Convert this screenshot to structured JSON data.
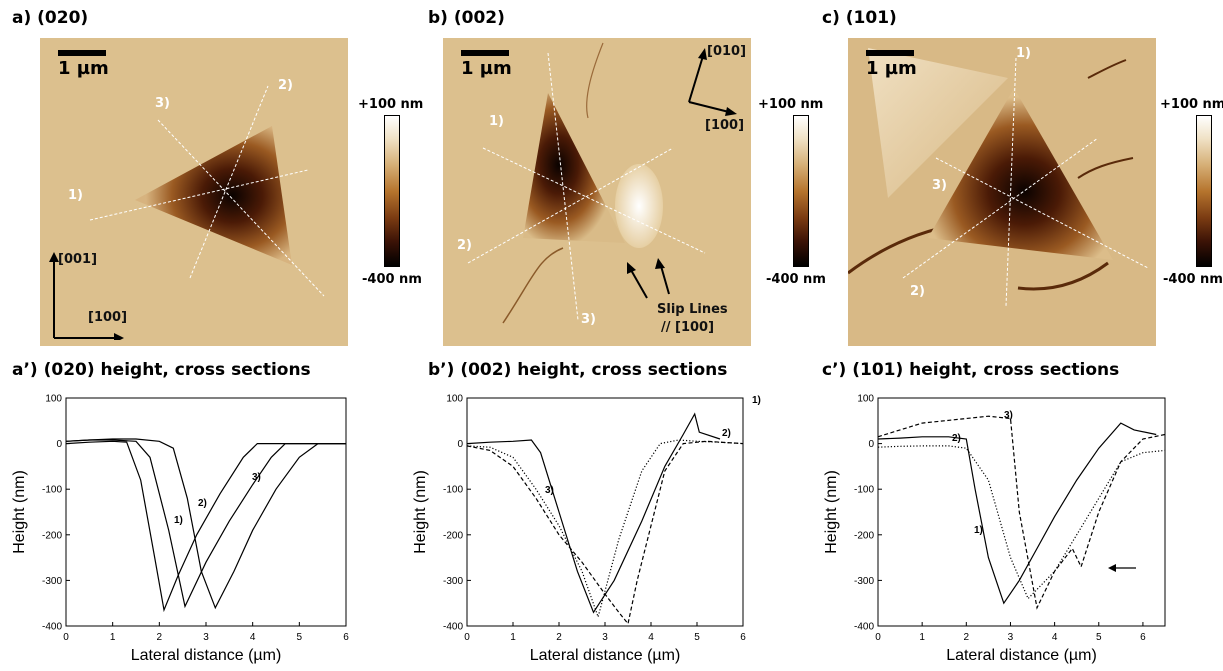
{
  "panels_top": [
    {
      "title": "a) (020)",
      "scale": "1 µm",
      "cbar_top": "+100 nm",
      "cbar_bottom": "-400 nm",
      "line_labels": [
        "1)",
        "2)",
        "3)"
      ],
      "axis_labels": [
        "[001]",
        "[100]"
      ]
    },
    {
      "title": "b) (002)",
      "scale": "1 µm",
      "cbar_top": "+100 nm",
      "cbar_bottom": "-400 nm",
      "line_labels": [
        "1)",
        "2)",
        "3)"
      ],
      "axis_labels": [
        "[010]",
        "[100]"
      ],
      "annotation": "Slip Lines",
      "annotation2": "// [100]"
    },
    {
      "title": "c) (101)",
      "scale": "1 µm",
      "cbar_top": "+100 nm",
      "cbar_bottom": "-400 nm",
      "line_labels": [
        "1)",
        "2)",
        "3)"
      ]
    }
  ],
  "chart_data": [
    {
      "type": "line",
      "title": "a’) (020) height, cross sections",
      "xlabel": "Lateral distance (µm)",
      "ylabel": "Height (nm)",
      "xlim": [
        0,
        6
      ],
      "ylim": [
        -400,
        100
      ],
      "xticks": [
        0,
        1,
        2,
        3,
        4,
        5,
        6
      ],
      "yticks": [
        -400,
        -300,
        -200,
        -100,
        0,
        100
      ],
      "series": [
        {
          "name": "1)",
          "style": "solid",
          "x": [
            0,
            0.5,
            1.0,
            1.3,
            1.6,
            1.9,
            2.1,
            2.4,
            2.8,
            3.3,
            3.8,
            4.1,
            4.3,
            5.0,
            6.0
          ],
          "y": [
            0,
            3,
            5,
            3,
            -80,
            -250,
            -365,
            -290,
            -200,
            -110,
            -30,
            0,
            0,
            0,
            0
          ]
        },
        {
          "name": "2)",
          "style": "solid",
          "x": [
            0,
            0.5,
            1.0,
            1.5,
            1.8,
            2.2,
            2.55,
            3.0,
            3.5,
            4.0,
            4.4,
            4.7,
            4.8,
            5.5,
            6.0
          ],
          "y": [
            5,
            8,
            8,
            5,
            -30,
            -190,
            -357,
            -260,
            -170,
            -90,
            -30,
            0,
            0,
            0,
            0
          ]
        },
        {
          "name": "3)",
          "style": "solid",
          "x": [
            0,
            0.5,
            1.0,
            1.5,
            2.0,
            2.3,
            2.6,
            2.9,
            3.2,
            3.6,
            4.0,
            4.5,
            5.0,
            5.4,
            6.0
          ],
          "y": [
            5,
            8,
            10,
            10,
            5,
            -10,
            -120,
            -280,
            -360,
            -280,
            -190,
            -100,
            -30,
            0,
            0
          ]
        }
      ],
      "data_labels": [
        "1)",
        "2)",
        "3)"
      ]
    },
    {
      "type": "line",
      "title": "b’) (002) height, cross sections",
      "xlabel": "Lateral distance (µm)",
      "ylabel": "Height (nm)",
      "xlim": [
        0,
        6
      ],
      "ylim": [
        -400,
        100
      ],
      "xticks": [
        0,
        1,
        2,
        3,
        4,
        5,
        6
      ],
      "yticks": [
        -400,
        -300,
        -200,
        -100,
        0,
        100
      ],
      "series": [
        {
          "name": "1)",
          "style": "solid",
          "x": [
            0,
            0.5,
            1.0,
            1.4,
            1.6,
            2.0,
            2.4,
            2.75,
            3.2,
            3.8,
            4.3,
            4.7,
            4.95,
            5.05,
            5.5
          ],
          "y": [
            0,
            3,
            5,
            8,
            -20,
            -150,
            -280,
            -370,
            -300,
            -170,
            -50,
            20,
            65,
            25,
            10
          ]
        },
        {
          "name": "2)",
          "style": "dotted",
          "x": [
            0,
            0.5,
            1.0,
            1.5,
            2.0,
            2.5,
            2.85,
            3.3,
            3.8,
            4.2,
            4.6,
            5.0,
            5.5,
            6.0
          ],
          "y": [
            -5,
            -8,
            -30,
            -100,
            -180,
            -280,
            -380,
            -210,
            -60,
            0,
            8,
            5,
            3,
            0
          ]
        },
        {
          "name": "3)",
          "style": "dashed",
          "x": [
            0,
            0.5,
            1.0,
            1.5,
            2.0,
            2.5,
            3.0,
            3.3,
            3.5,
            3.7,
            4.0,
            4.3,
            4.7,
            5.2,
            6.0
          ],
          "y": [
            -5,
            -15,
            -50,
            -120,
            -200,
            -260,
            -330,
            -370,
            -395,
            -300,
            -180,
            -60,
            0,
            5,
            0
          ]
        }
      ],
      "data_labels": [
        "1)",
        "2)",
        "3)"
      ]
    },
    {
      "type": "line",
      "title": "c’) (101) height, cross sections",
      "xlabel": "Lateral distance (µm)",
      "ylabel": "Height (nm)",
      "xlim": [
        0,
        6.5
      ],
      "ylim": [
        -400,
        100
      ],
      "xticks": [
        0,
        1,
        2,
        3,
        4,
        5,
        6
      ],
      "yticks": [
        -400,
        -300,
        -200,
        -100,
        0,
        100
      ],
      "series": [
        {
          "name": "1)",
          "style": "solid",
          "x": [
            0,
            0.5,
            1.0,
            1.6,
            2.0,
            2.2,
            2.5,
            2.85,
            3.2,
            3.6,
            4.0,
            4.5,
            5.0,
            5.5,
            5.8,
            6.3
          ],
          "y": [
            10,
            12,
            15,
            15,
            10,
            -100,
            -250,
            -350,
            -300,
            -230,
            -160,
            -80,
            -10,
            45,
            30,
            20
          ]
        },
        {
          "name": "2)",
          "style": "dotted",
          "x": [
            0,
            0.5,
            1.0,
            1.6,
            2.0,
            2.5,
            3.0,
            3.4,
            4.0,
            4.5,
            5.0,
            5.5,
            6.0,
            6.5
          ],
          "y": [
            -8,
            -6,
            -5,
            -5,
            -10,
            -80,
            -250,
            -340,
            -280,
            -200,
            -120,
            -40,
            -20,
            -15
          ]
        },
        {
          "name": "3)",
          "style": "dashed",
          "x": [
            0,
            0.5,
            1.0,
            1.5,
            2.0,
            2.5,
            3.0,
            3.2,
            3.6,
            4.0,
            4.4,
            4.6,
            5.0,
            5.5,
            6.0,
            6.5
          ],
          "y": [
            15,
            30,
            45,
            50,
            55,
            60,
            55,
            -150,
            -360,
            -280,
            -230,
            -270,
            -150,
            -40,
            10,
            20
          ]
        }
      ],
      "data_labels": [
        "1)",
        "2)",
        "3)"
      ]
    }
  ]
}
